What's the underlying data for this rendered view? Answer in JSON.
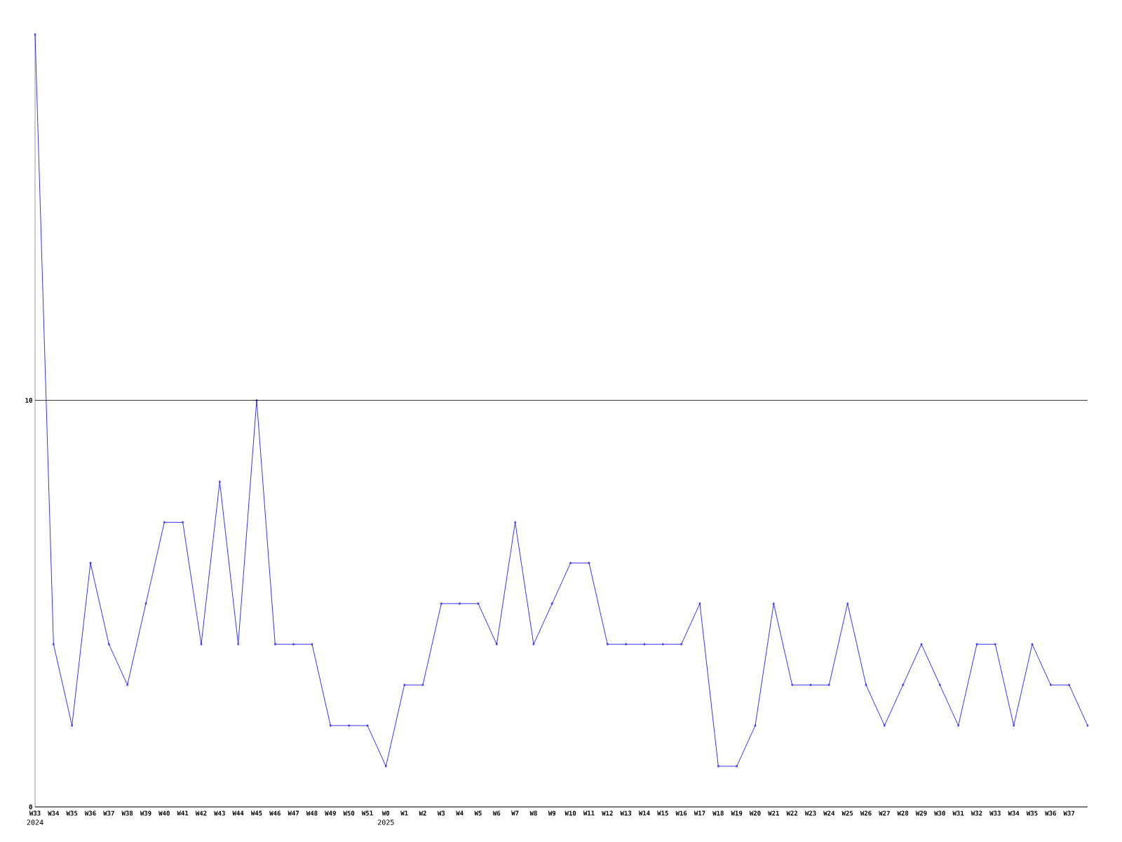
{
  "chart_data": {
    "type": "line",
    "categories": [
      "W33",
      "W34",
      "W35",
      "W36",
      "W37",
      "W38",
      "W39",
      "W40",
      "W41",
      "W42",
      "W43",
      "W44",
      "W45",
      "W46",
      "W47",
      "W48",
      "W49",
      "W50",
      "W51",
      "W0",
      "W1",
      "W2",
      "W3",
      "W4",
      "W5",
      "W6",
      "W7",
      "W8",
      "W9",
      "W10",
      "W11",
      "W12",
      "W13",
      "W14",
      "W15",
      "W16",
      "W17",
      "W18",
      "W19",
      "W20",
      "W21",
      "W22",
      "W23",
      "W24",
      "W25",
      "W26",
      "W27",
      "W28",
      "W29",
      "W30",
      "W31",
      "W32",
      "W33",
      "W34",
      "W35",
      "W36",
      "W37",
      null
    ],
    "values": [
      19,
      4,
      2,
      6,
      4,
      3,
      5,
      7,
      7,
      4,
      8,
      4,
      10,
      4,
      4,
      4,
      2,
      2,
      2,
      1,
      3,
      3,
      5,
      5,
      5,
      4,
      7,
      4,
      5,
      6,
      6,
      4,
      4,
      4,
      4,
      4,
      5,
      1,
      1,
      2,
      5,
      3,
      3,
      3,
      5,
      3,
      2,
      3,
      4,
      3,
      2,
      4,
      4,
      2,
      4,
      3,
      3,
      2
    ],
    "color": "#0000ff",
    "marker": "diamond",
    "ylim": [
      0,
      19
    ],
    "yticks": [
      0,
      10
    ],
    "grid": "y",
    "annotations": [
      "2024",
      "2025"
    ]
  }
}
